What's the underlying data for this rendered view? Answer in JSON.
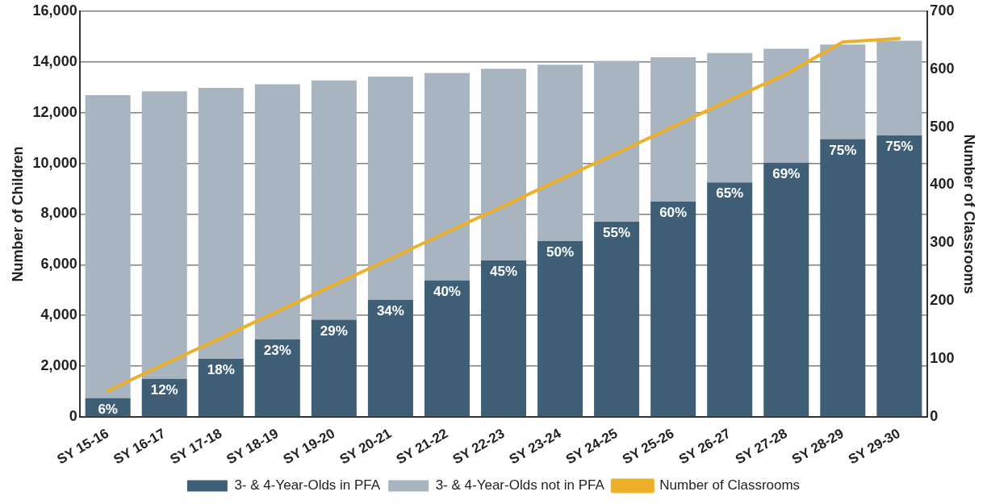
{
  "chart_data": {
    "type": "bar",
    "stacked": true,
    "categories": [
      "SY 15-16",
      "SY 16-17",
      "SY 17-18",
      "SY 18-19",
      "SY 19-20",
      "SY 20-21",
      "SY 21-22",
      "SY 22-23",
      "SY 23-24",
      "SY 24-25",
      "SY 25-26",
      "SY 26-27",
      "SY 27-28",
      "SY 28-29",
      "SY 29-30"
    ],
    "series": [
      {
        "name": "3- & 4-Year-Olds in PFA",
        "color": "#3f5f76",
        "values": [
          740,
          1500,
          2290,
          3060,
          3830,
          4620,
          5380,
          6170,
          6930,
          7700,
          8490,
          9250,
          10030,
          10960,
          11100
        ]
      },
      {
        "name": "3- & 4-Year-Olds not in PFA",
        "color": "#a8b5c1",
        "values": [
          11950,
          11340,
          10690,
          10060,
          9440,
          8800,
          8190,
          7560,
          6960,
          6340,
          5700,
          5100,
          4490,
          3730,
          3740
        ]
      },
      {
        "name": "Number of Classrooms",
        "type": "line",
        "axis": "y2",
        "color": "#ecb02a",
        "values": [
          45,
          91,
          136,
          182,
          228,
          273,
          319,
          364,
          410,
          455,
          501,
          547,
          592,
          647,
          653
        ]
      }
    ],
    "ylabel": "Number of Children",
    "y2label": "Number of Classrooms",
    "ylim": [
      0,
      16000
    ],
    "yticks": [
      {
        "value": 0,
        "label": "0"
      },
      {
        "value": 2000,
        "label": "2,000"
      },
      {
        "value": 4000,
        "label": "4,000"
      },
      {
        "value": 6000,
        "label": "6,000"
      },
      {
        "value": 8000,
        "label": "8,000"
      },
      {
        "value": 10000,
        "label": "10,000"
      },
      {
        "value": 12000,
        "label": "12,000"
      },
      {
        "value": 14000,
        "label": "14,000"
      },
      {
        "value": 16000,
        "label": "16,000"
      }
    ],
    "y2lim": [
      0,
      700
    ],
    "y2ticks": [
      0,
      100,
      200,
      300,
      400,
      500,
      600,
      700
    ],
    "annotations": [
      {
        "text": "6%",
        "x": "SY 15-16",
        "y": 740
      },
      {
        "text": "12%",
        "x": "SY 16-17",
        "y": 1500
      },
      {
        "text": "18%",
        "x": "SY 17-18",
        "y": 2290
      },
      {
        "text": "23%",
        "x": "SY 18-19",
        "y": 3060
      },
      {
        "text": "29%",
        "x": "SY 19-20",
        "y": 3830
      },
      {
        "text": "34%",
        "x": "SY 20-21",
        "y": 4620
      },
      {
        "text": "40%",
        "x": "SY 21-22",
        "y": 5380
      },
      {
        "text": "45%",
        "x": "SY 22-23",
        "y": 6170
      },
      {
        "text": "50%",
        "x": "SY 23-24",
        "y": 6930
      },
      {
        "text": "55%",
        "x": "SY 24-25",
        "y": 7700
      },
      {
        "text": "60%",
        "x": "SY 25-26",
        "y": 8490
      },
      {
        "text": "65%",
        "x": "SY 26-27",
        "y": 9250
      },
      {
        "text": "69%",
        "x": "SY 27-28",
        "y": 10030
      },
      {
        "text": "75%",
        "x": "SY 28-29",
        "y": 10960
      },
      {
        "text": "75%",
        "x": "SY 29-30",
        "y": 11100
      }
    ],
    "grid": "y",
    "legend": "bottom",
    "marker": "none"
  }
}
